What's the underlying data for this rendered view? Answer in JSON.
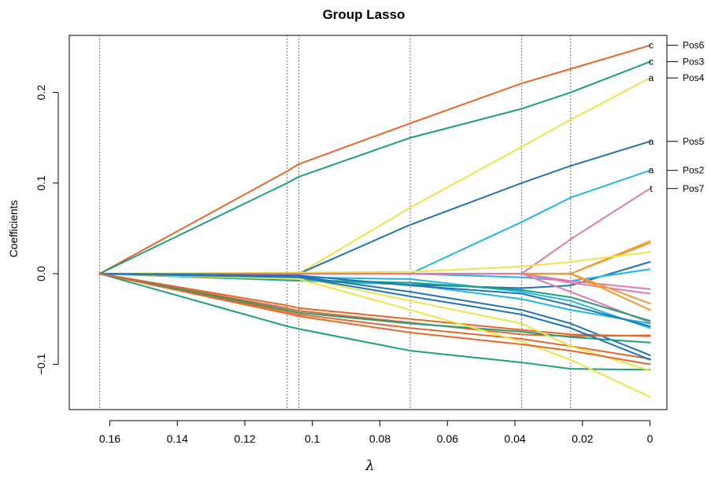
{
  "chart_data": {
    "type": "line",
    "title": "Group Lasso",
    "xlabel": "λ",
    "ylabel": "Coefficients",
    "xlim": [
      0.172,
      -0.005
    ],
    "ylim": [
      -0.15,
      0.263
    ],
    "x_reversed": true,
    "xticks": [
      0.16,
      0.14,
      0.12,
      0.1,
      0.08,
      0.06,
      0.04,
      0.02,
      0
    ],
    "xtick_labels": [
      "0.16",
      "0.14",
      "0.12",
      "0.1",
      "0.08",
      "0.06",
      "0.04",
      "0.02",
      "0"
    ],
    "yticks": [
      -0.1,
      0.0,
      0.1,
      0.2
    ],
    "ytick_labels": [
      "−0.1",
      "0.0",
      "0.1",
      "0.2"
    ],
    "grid": false,
    "breakpoints": [
      0.163,
      0.1075,
      0.104,
      0.071,
      0.038,
      0.0235
    ],
    "colors": {
      "orange": "#E8662A",
      "green": "#1BA07A",
      "yellow": "#EDE34A",
      "blue": "#1E74B4",
      "cyan": "#22B6E4",
      "pink": "#E07BB0",
      "amber": "#F29A2E"
    },
    "series": [
      {
        "color": "orange",
        "x": [
          0.163,
          0.1075,
          0.104,
          0.071,
          0.038,
          0.0235,
          0
        ],
        "y": [
          0,
          0.113,
          0.121,
          0.166,
          0.21,
          0.226,
          0.252
        ]
      },
      {
        "color": "green",
        "x": [
          0.163,
          0.1075,
          0.104,
          0.071,
          0.038,
          0.0235,
          0
        ],
        "y": [
          0,
          0.1,
          0.107,
          0.15,
          0.182,
          0.2,
          0.234
        ]
      },
      {
        "color": "yellow",
        "x": [
          0.163,
          0.104,
          0.071,
          0.038,
          0.0235,
          0
        ],
        "y": [
          0,
          0,
          0.073,
          0.14,
          0.17,
          0.216
        ]
      },
      {
        "color": "blue",
        "x": [
          0.163,
          0.104,
          0.071,
          0.038,
          0.0235,
          0
        ],
        "y": [
          0,
          0,
          0.054,
          0.1,
          0.119,
          0.146
        ]
      },
      {
        "color": "cyan",
        "x": [
          0.163,
          0.071,
          0.038,
          0.0235,
          0
        ],
        "y": [
          0,
          0,
          0.057,
          0.084,
          0.114
        ]
      },
      {
        "color": "pink",
        "x": [
          0.163,
          0.038,
          0.0235,
          0
        ],
        "y": [
          0,
          0,
          0.038,
          0.094
        ]
      },
      {
        "color": "amber",
        "x": [
          0.163,
          0.0235,
          0
        ],
        "y": [
          0,
          0,
          0.036
        ]
      },
      {
        "color": "amber",
        "x": [
          0.163,
          0.0235,
          0
        ],
        "y": [
          0,
          0,
          0.034
        ]
      },
      {
        "color": "yellow",
        "x": [
          0.163,
          0.071,
          0.038,
          0.0235,
          0
        ],
        "y": [
          0,
          0.002,
          0.008,
          0.013,
          0.024
        ]
      },
      {
        "color": "blue",
        "x": [
          0.163,
          0.071,
          0.038,
          0.0235,
          0
        ],
        "y": [
          0,
          -0.012,
          -0.016,
          -0.013,
          0.013
        ]
      },
      {
        "color": "cyan",
        "x": [
          0.163,
          0.071,
          0.038,
          0.0235,
          0
        ],
        "y": [
          0,
          0,
          -0.004,
          -0.008,
          0.005
        ]
      },
      {
        "color": "pink",
        "x": [
          0.163,
          0.038,
          0.0235,
          0
        ],
        "y": [
          0,
          0,
          -0.008,
          -0.017
        ]
      },
      {
        "color": "pink",
        "x": [
          0.163,
          0.038,
          0.0235,
          0
        ],
        "y": [
          0,
          0,
          -0.01,
          -0.022
        ]
      },
      {
        "color": "amber",
        "x": [
          0.163,
          0.0235,
          0
        ],
        "y": [
          0,
          0,
          -0.033
        ]
      },
      {
        "color": "amber",
        "x": [
          0.163,
          0.0235,
          0
        ],
        "y": [
          0,
          0,
          -0.04
        ]
      },
      {
        "color": "pink",
        "x": [
          0.163,
          0.038,
          0.0235,
          0
        ],
        "y": [
          0,
          0,
          -0.02,
          -0.054
        ]
      },
      {
        "color": "cyan",
        "x": [
          0.163,
          0.071,
          0.038,
          0.0235,
          0
        ],
        "y": [
          0,
          -0.012,
          -0.028,
          -0.04,
          -0.055
        ]
      },
      {
        "color": "cyan",
        "x": [
          0.163,
          0.071,
          0.038,
          0.0235,
          0
        ],
        "y": [
          0,
          -0.006,
          -0.02,
          -0.03,
          -0.06
        ]
      },
      {
        "color": "green",
        "x": [
          0.163,
          0.104,
          0.071,
          0.038,
          0.0235,
          0
        ],
        "y": [
          0,
          -0.007,
          -0.01,
          -0.018,
          -0.026,
          -0.052
        ]
      },
      {
        "color": "blue",
        "x": [
          0.163,
          0.104,
          0.071,
          0.038,
          0.0235,
          0
        ],
        "y": [
          0,
          -0.003,
          -0.02,
          -0.04,
          -0.055,
          -0.09
        ]
      },
      {
        "color": "blue",
        "x": [
          0.163,
          0.104,
          0.071,
          0.038,
          0.0235,
          0
        ],
        "y": [
          0,
          -0.002,
          -0.013,
          -0.022,
          -0.035,
          -0.058
        ]
      },
      {
        "color": "orange",
        "x": [
          0.163,
          0.1075,
          0.104,
          0.071,
          0.038,
          0.0235,
          0
        ],
        "y": [
          0,
          -0.035,
          -0.038,
          -0.05,
          -0.062,
          -0.067,
          -0.069
        ]
      },
      {
        "color": "orange",
        "x": [
          0.163,
          0.1075,
          0.104,
          0.071,
          0.038,
          0.0235,
          0
        ],
        "y": [
          0,
          -0.038,
          -0.041,
          -0.054,
          -0.067,
          -0.069,
          -0.068
        ]
      },
      {
        "color": "orange",
        "x": [
          0.163,
          0.1075,
          0.104,
          0.071,
          0.038,
          0.0235,
          0
        ],
        "y": [
          0,
          -0.042,
          -0.045,
          -0.06,
          -0.072,
          -0.08,
          -0.094
        ]
      },
      {
        "color": "green",
        "x": [
          0.163,
          0.1075,
          0.104,
          0.071,
          0.038,
          0.0235,
          0
        ],
        "y": [
          0,
          -0.04,
          -0.043,
          -0.055,
          -0.064,
          -0.07,
          -0.076
        ]
      },
      {
        "color": "green",
        "x": [
          0.163,
          0.1075,
          0.104,
          0.071,
          0.038,
          0.0235,
          0
        ],
        "y": [
          0,
          -0.058,
          -0.061,
          -0.085,
          -0.098,
          -0.105,
          -0.106
        ]
      },
      {
        "color": "yellow",
        "x": [
          0.163,
          0.104,
          0.071,
          0.038,
          0.0235,
          0
        ],
        "y": [
          0,
          -0.006,
          -0.04,
          -0.075,
          -0.095,
          -0.136
        ]
      },
      {
        "color": "yellow",
        "x": [
          0.163,
          0.104,
          0.071,
          0.038,
          0.0235,
          0
        ],
        "y": [
          0,
          -0.004,
          -0.03,
          -0.055,
          -0.08,
          -0.107
        ]
      },
      {
        "color": "blue",
        "x": [
          0.163,
          0.104,
          0.071,
          0.038,
          0.0235,
          0
        ],
        "y": [
          0,
          -0.004,
          -0.025,
          -0.045,
          -0.06,
          -0.095
        ]
      },
      {
        "color": "orange",
        "x": [
          0.163,
          0.1075,
          0.104,
          0.071,
          0.038,
          0.0235,
          0
        ],
        "y": [
          0,
          -0.044,
          -0.047,
          -0.065,
          -0.078,
          -0.085,
          -0.1
        ]
      }
    ],
    "end_labels": [
      {
        "text": "c",
        "y": 0.252
      },
      {
        "text": "c",
        "y": 0.234
      },
      {
        "text": "a",
        "y": 0.216
      },
      {
        "text": "a",
        "y": 0.146
      },
      {
        "text": "a",
        "y": 0.114
      },
      {
        "text": "t",
        "y": 0.094
      }
    ],
    "right_labels": [
      {
        "text": "Pos6",
        "y": 0.252
      },
      {
        "text": "Pos3",
        "y": 0.234
      },
      {
        "text": "Pos4",
        "y": 0.216
      },
      {
        "text": "Pos5",
        "y": 0.146
      },
      {
        "text": "Pos2",
        "y": 0.114
      },
      {
        "text": "Pos7",
        "y": 0.094
      }
    ]
  }
}
